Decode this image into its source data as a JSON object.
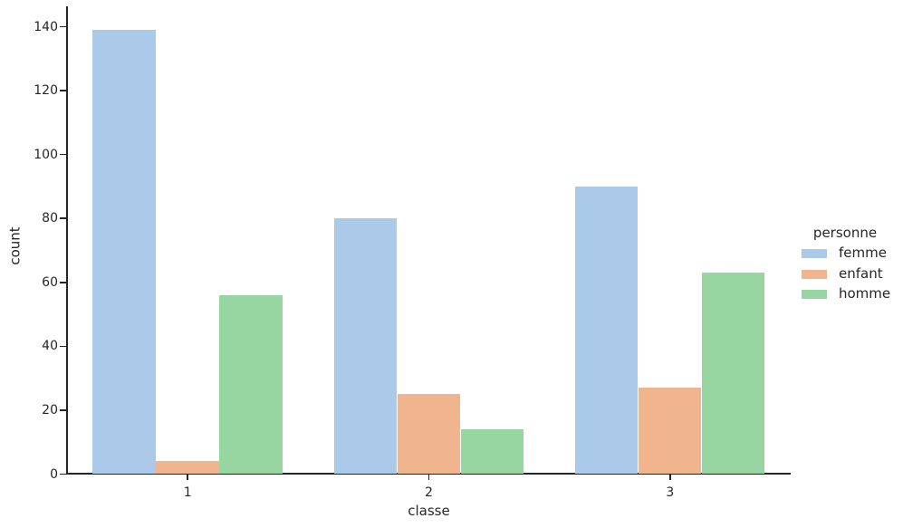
{
  "chart_data": {
    "type": "bar",
    "title": "",
    "xlabel": "classe",
    "ylabel": "count",
    "categories": [
      "1",
      "2",
      "3"
    ],
    "series": [
      {
        "name": "femme",
        "color": "#abc9e9",
        "values": [
          139,
          80,
          90
        ]
      },
      {
        "name": "enfant",
        "color": "#f0b58e",
        "values": [
          4,
          25,
          27
        ]
      },
      {
        "name": "homme",
        "color": "#97d6a1",
        "values": [
          56,
          14,
          63
        ]
      }
    ],
    "legend": {
      "title": "personne",
      "position": "right"
    },
    "yticks": [
      0,
      20,
      40,
      60,
      80,
      100,
      120,
      140
    ],
    "ylim": [
      0,
      147
    ],
    "grid": false,
    "background": "#ffffff",
    "axis_color": "#262626",
    "text_color": "#262626"
  }
}
